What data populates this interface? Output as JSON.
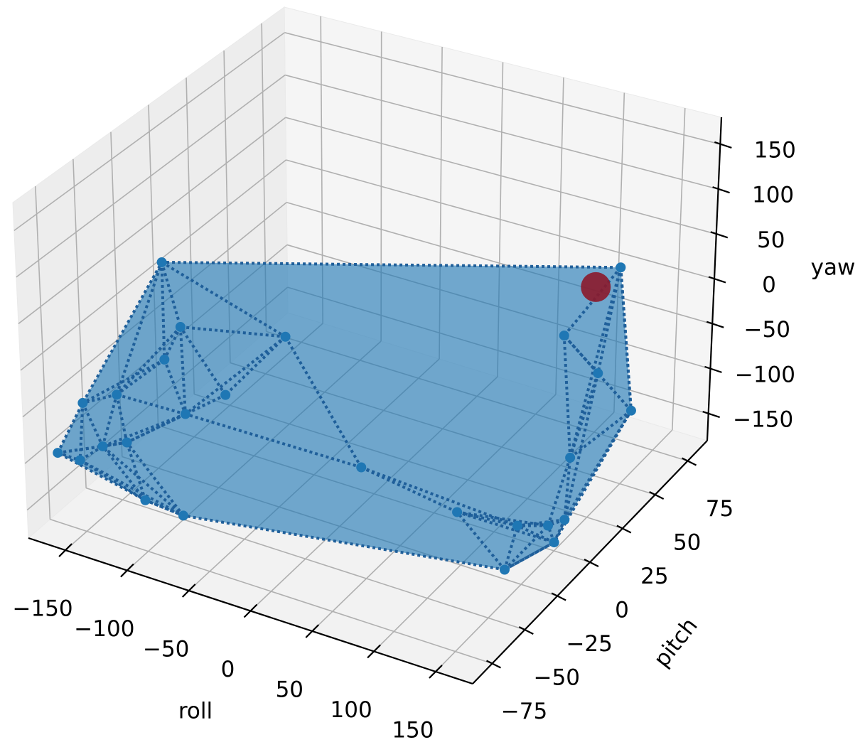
{
  "chart_data": {
    "type": "scatter3d",
    "xlabel": "roll",
    "ylabel": "pitch",
    "zlabel": "yaw",
    "xlim": [
      -180,
      180
    ],
    "ylim": [
      -90,
      90
    ],
    "zlim": [
      -180,
      180
    ],
    "xticks": [
      {
        "value": -150,
        "label": "−150"
      },
      {
        "value": -100,
        "label": "−100"
      },
      {
        "value": -50,
        "label": "−50"
      },
      0,
      50,
      100,
      150
    ],
    "yticks": [
      {
        "value": -75,
        "label": "−75"
      },
      {
        "value": -50,
        "label": "−50"
      },
      {
        "value": -25,
        "label": "−25"
      },
      0,
      25,
      50,
      75
    ],
    "zticks": [
      {
        "value": -150,
        "label": "−150"
      },
      {
        "value": -100,
        "label": "−100"
      },
      {
        "value": -50,
        "label": "−50"
      },
      0,
      50,
      100,
      150
    ],
    "grid": true,
    "series": [
      {
        "color": "#1f77b4",
        "x": [
          -173,
          141,
          134,
          148,
          -175,
          -74,
          -94,
          150,
          139,
          135,
          129,
          89,
          123,
          115,
          76,
          -94,
          -137,
          -129,
          -123,
          -113,
          -140,
          -149,
          -147,
          -153,
          10,
          -146
        ],
        "y": [
          0,
          54,
          72,
          -36,
          -72,
          -72,
          -81,
          0,
          18,
          9,
          -9,
          -18,
          36,
          63,
          72,
          18,
          -18,
          -36,
          0,
          -36,
          -54,
          -63,
          -54,
          -72,
          -18,
          -81
        ],
        "z": [
          6,
          48,
          -138,
          -150,
          -110,
          -135,
          -115,
          -171,
          -177,
          -172,
          -149,
          -138,
          -142,
          -91,
          -77,
          -70,
          -28,
          -37,
          -122,
          -90,
          -108,
          -104,
          -59,
          -47,
          -122,
          -94
        ]
      },
      {
        "color": "#8b1a2b",
        "x": [
          121
        ],
        "y": [
          54
        ],
        "z": [
          19
        ]
      }
    ]
  }
}
